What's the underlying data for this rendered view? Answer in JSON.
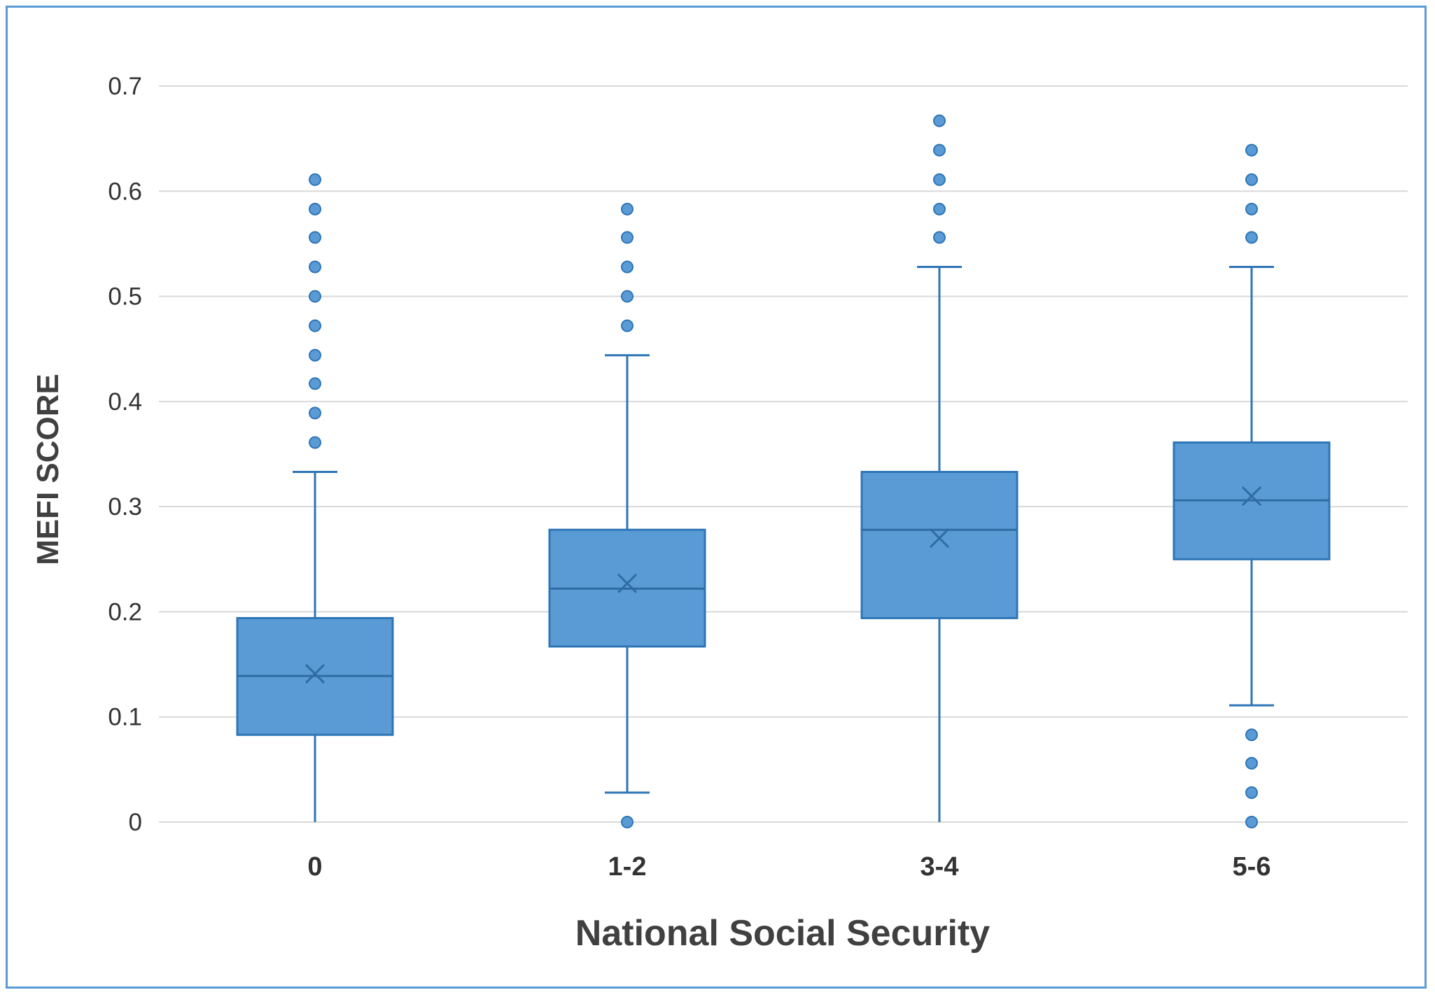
{
  "chart_data": {
    "type": "boxplot",
    "title": "",
    "xlabel": "National Social Security",
    "ylabel": "MEFI SCORE",
    "ylim": [
      0,
      0.7
    ],
    "yticks": [
      "0",
      "0.1",
      "0.2",
      "0.3",
      "0.4",
      "0.5",
      "0.6",
      "0.7"
    ],
    "grid": true,
    "legend": "none",
    "colors": {
      "box_fill": "#5b9bd5",
      "box_stroke": "#2e75b6",
      "whisker": "#2e75b6",
      "grid": "#d9d9d9"
    },
    "categories": [
      "0",
      "1-2",
      "3-4",
      "5-6"
    ],
    "boxes": [
      {
        "category": "0",
        "whisker_low": 0,
        "q1": 0.083,
        "median": 0.139,
        "q3": 0.194,
        "whisker_high": 0.333,
        "mean": 0.141,
        "outliers": [
          0.361,
          0.389,
          0.417,
          0.444,
          0.472,
          0.5,
          0.528,
          0.556,
          0.583,
          0.611
        ]
      },
      {
        "category": "1-2",
        "whisker_low": 0.028,
        "q1": 0.167,
        "median": 0.222,
        "q3": 0.278,
        "whisker_high": 0.444,
        "mean": 0.227,
        "outliers": [
          0,
          0.472,
          0.5,
          0.528,
          0.556,
          0.583
        ]
      },
      {
        "category": "3-4",
        "whisker_low": 0,
        "q1": 0.194,
        "median": 0.278,
        "q3": 0.333,
        "whisker_high": 0.528,
        "mean": 0.27,
        "outliers": [
          0.556,
          0.583,
          0.611,
          0.639,
          0.667
        ]
      },
      {
        "category": "5-6",
        "whisker_low": 0.111,
        "q1": 0.25,
        "median": 0.306,
        "q3": 0.361,
        "whisker_high": 0.528,
        "mean": 0.31,
        "outliers": [
          0,
          0.028,
          0.056,
          0.083,
          0.556,
          0.583,
          0.611,
          0.639
        ]
      }
    ]
  }
}
